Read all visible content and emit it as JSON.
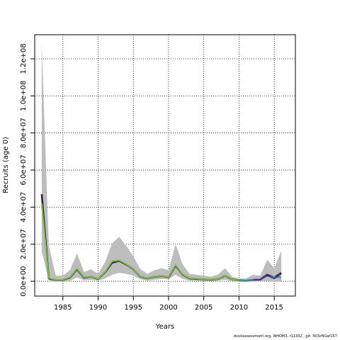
{
  "chart_data": {
    "type": "line",
    "title": "",
    "xlabel": "Years",
    "ylabel": "Recruits (age 0)",
    "xlim": [
      1981,
      2018
    ],
    "ylim": [
      -8000000,
      133000000
    ],
    "x_ticks": [
      1985,
      1990,
      1995,
      2000,
      2005,
      2010,
      2015
    ],
    "y_ticks": [
      0,
      20000000,
      40000000,
      60000000,
      80000000,
      100000000,
      120000000
    ],
    "y_tick_labels": [
      "0.0e+00",
      "2.0e+07",
      "4.0e+07",
      "6.0e+07",
      "8.0e+07",
      "1.0e+08",
      "1.2e+08"
    ],
    "grid": true,
    "band": {
      "x": [
        1982,
        1983,
        1984,
        1985,
        1986,
        1987,
        1988,
        1989,
        1990,
        1991,
        1992,
        1993,
        1994,
        1995,
        1996,
        1997,
        1998,
        1999,
        2000,
        2001,
        2002,
        2003,
        2004,
        2005,
        2006,
        2007,
        2008,
        2009,
        2010,
        2011,
        2012,
        2013,
        2014,
        2015,
        2016
      ],
      "upper": [
        128000000,
        19000000,
        3000000,
        3000000,
        6000000,
        15000000,
        5000000,
        6500000,
        4000000,
        10500000,
        20500000,
        24000000,
        19000000,
        13500000,
        6500000,
        4000000,
        6000000,
        7000000,
        6000000,
        20000000,
        9000000,
        4000000,
        3500000,
        3000000,
        2500000,
        3500000,
        7000000,
        2500000,
        1500000,
        1500000,
        3500000,
        3000000,
        11500000,
        7000000,
        16500000
      ],
      "lower": [
        16000000,
        500000,
        -200000,
        -200000,
        300000,
        2000000,
        500000,
        800000,
        300000,
        1500000,
        3500000,
        4500000,
        4000000,
        3000000,
        1000000,
        300000,
        800000,
        1200000,
        1000000,
        3500000,
        1200000,
        300000,
        300000,
        200000,
        200000,
        300000,
        800000,
        200000,
        -200000,
        -200000,
        -100000,
        -100000,
        200000,
        -200000,
        -200000
      ]
    },
    "series": [
      {
        "color": "#222244",
        "x": [
          1982,
          1983,
          1984,
          1985,
          1986,
          1987,
          1988,
          1989,
          1990,
          1991,
          1992,
          1993,
          1994,
          1995,
          1996,
          1997,
          1998,
          1999,
          2000,
          2001,
          2002,
          2003,
          2004,
          2005,
          2006,
          2007,
          2008,
          2009,
          2010,
          2011,
          2012,
          2013,
          2014,
          2015,
          2016
        ],
        "y": [
          47000000,
          1500000,
          700000,
          700000,
          2000000,
          6500000,
          2000000,
          2500000,
          1200000,
          5000000,
          10000000,
          11000000,
          9000000,
          6500000,
          2500000,
          1500000,
          2500000,
          2800000,
          2200000,
          8500000,
          3500000,
          1500000,
          1300000,
          1000000,
          800000,
          1200000,
          3000000,
          1000000,
          500000,
          300000,
          800000,
          900000,
          3500000,
          2000000,
          4500000
        ]
      },
      {
        "color": "#7fbf3f",
        "x": [
          1982,
          1983,
          1984,
          1985,
          1986,
          1987,
          1988,
          1989,
          1990,
          1991,
          1992,
          1993,
          1994,
          1995,
          1996,
          1997,
          1998,
          1999,
          2000,
          2001,
          2002,
          2003,
          2004,
          2005,
          2006,
          2007,
          2008,
          2009,
          2010
        ],
        "y": [
          42000000,
          1800000,
          800000,
          800000,
          2200000,
          6800000,
          2200000,
          2600000,
          1300000,
          5200000,
          10800000,
          11300000,
          9200000,
          6600000,
          2600000,
          1600000,
          2600000,
          2900000,
          2300000,
          8800000,
          3600000,
          1600000,
          1400000,
          1100000,
          900000,
          1300000,
          3100000,
          1000000,
          500000
        ]
      },
      {
        "color": "#2aa198",
        "x": [
          2010,
          2011,
          2012,
          2013,
          2014,
          2015,
          2016
        ],
        "y": [
          500000,
          300000,
          900000,
          1000000,
          2800000,
          2300000,
          2000000
        ]
      },
      {
        "color": "#5b2a86",
        "x": [
          2012,
          2013,
          2014,
          2015,
          2016
        ],
        "y": [
          700000,
          900000,
          3200000,
          1500000,
          4000000
        ]
      }
    ]
  },
  "footer": "stockassessment.org, WHOM3, r11332 , git: 503cf91af157"
}
